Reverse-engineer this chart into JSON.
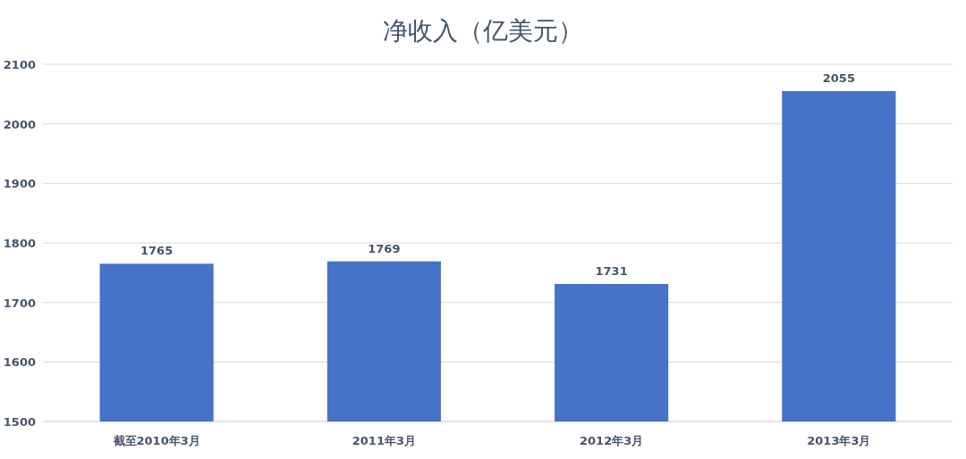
{
  "chart_data": {
    "type": "bar",
    "title": "净收入（亿美元）",
    "categories": [
      "截至2010年3月",
      "2011年3月",
      "2012年3月",
      "2013年3月"
    ],
    "values": [
      1765,
      1769,
      1731,
      2055
    ],
    "color": "#4672c8",
    "ylim": [
      1500,
      2100
    ],
    "yticks": [
      1500,
      1600,
      1700,
      1800,
      1900,
      2000,
      2100
    ],
    "grid": "y",
    "data_labels": true
  }
}
